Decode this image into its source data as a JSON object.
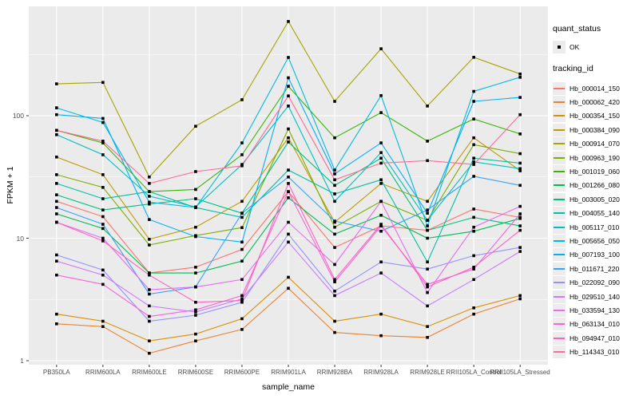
{
  "figure": {
    "background": "#FFFFFF",
    "panel_background": "#EBEBEB",
    "grid_color": "#FFFFFF",
    "tick_color": "#333333",
    "tick_label_color": "#4D4D4D",
    "point_color": "#000000"
  },
  "axes": {
    "x": {
      "title": "sample_name"
    },
    "y": {
      "title": "FPKM + 1",
      "scale": "log10",
      "tick_labels": [
        "1",
        "10",
        "100"
      ],
      "tick_values": [
        1,
        10,
        100
      ]
    }
  },
  "legend": {
    "quant_status": {
      "title": "quant_status",
      "items": [
        {
          "label": "OK",
          "symbol": "point"
        }
      ]
    },
    "tracking_id": {
      "title": "tracking_id"
    }
  },
  "chart_data": {
    "type": "line",
    "title": "",
    "xlabel": "sample_name",
    "ylabel": "FPKM + 1",
    "y_scale": "log10",
    "ylim": [
      0.93,
      780
    ],
    "grid": true,
    "legend_position": "right",
    "categories": [
      "PB350LA",
      "RRIM600LA",
      "RRIM600LE",
      "RRIM600SE",
      "RRIM600PE",
      "RRIM901LA",
      "RRIM928BA",
      "RRIM928LA",
      "RRIM928LE",
      "RRII105LA_Control",
      "RRII105LA_Stressed"
    ],
    "series": [
      {
        "name": "Hb_000014_150",
        "color": "#F8766D",
        "values": [
          20,
          15,
          5.2,
          5.8,
          8.1,
          24,
          8.4,
          12.6,
          11.6,
          17.3,
          14.8
        ]
      },
      {
        "name": "Hb_000062_420",
        "color": "#EA8331",
        "values": [
          2.0,
          1.9,
          1.15,
          1.45,
          1.8,
          3.9,
          1.7,
          1.6,
          1.55,
          2.4,
          3.2
        ]
      },
      {
        "name": "Hb_000354_150",
        "color": "#D89000",
        "values": [
          2.4,
          2.1,
          1.45,
          1.65,
          2.2,
          4.8,
          2.1,
          2.4,
          1.9,
          2.7,
          3.4
        ]
      },
      {
        "name": "Hb_000384_090",
        "color": "#C09B00",
        "values": [
          46,
          33,
          9.8,
          12.3,
          20,
          66,
          13.5,
          28,
          20,
          66,
          35.5
        ]
      },
      {
        "name": "Hb_000914_070",
        "color": "#A3A500",
        "values": [
          182,
          187,
          31.6,
          82,
          135,
          588,
          131,
          352,
          120,
          300,
          219
        ]
      },
      {
        "name": "Hb_000963_190",
        "color": "#7CAE00",
        "values": [
          33,
          26,
          8.8,
          10.5,
          12.2,
          78,
          12.3,
          20,
          14,
          58,
          49
        ]
      },
      {
        "name": "Hb_001019_060",
        "color": "#39B600",
        "values": [
          76,
          60,
          24,
          25,
          48,
          174,
          66,
          106,
          62,
          94,
          71
        ]
      },
      {
        "name": "Hb_001266_080",
        "color": "#00BB4E",
        "values": [
          15.8,
          12,
          5.2,
          5.2,
          6.5,
          21.4,
          10.8,
          15.4,
          10,
          11.4,
          14.5
        ]
      },
      {
        "name": "Hb_003005_020",
        "color": "#00BF7D",
        "values": [
          22.6,
          17,
          19,
          21,
          16,
          61,
          27,
          45,
          11.6,
          14.8,
          12.6
        ]
      },
      {
        "name": "Hb_004055_140",
        "color": "#00C1A3",
        "values": [
          28,
          21,
          24,
          17.8,
          14.8,
          36,
          23,
          30,
          6.4,
          45,
          41
        ]
      },
      {
        "name": "Hb_005117_010",
        "color": "#00BFC4",
        "values": [
          70,
          48,
          22,
          18,
          40,
          120,
          20,
          50,
          14,
          42,
          37
        ]
      },
      {
        "name": "Hb_005656_050",
        "color": "#00BAE0",
        "values": [
          116,
          88,
          19.7,
          17.8,
          60,
          299,
          36,
          146,
          12.6,
          158,
          206
        ]
      },
      {
        "name": "Hb_007193_100",
        "color": "#00B0F6",
        "values": [
          102,
          95,
          14.2,
          10.3,
          9.3,
          204,
          33.5,
          60,
          16,
          131,
          141
        ]
      },
      {
        "name": "Hb_011671_220",
        "color": "#35A2FF",
        "values": [
          17.8,
          13,
          3.5,
          4.0,
          16,
          31.6,
          13.8,
          11.4,
          17,
          32,
          27
        ]
      },
      {
        "name": "Hb_022092_090",
        "color": "#9590FF",
        "values": [
          7.3,
          5.5,
          2.1,
          2.35,
          3.0,
          10.8,
          3.7,
          6.4,
          5.6,
          7.2,
          8.4
        ]
      },
      {
        "name": "Hb_029510_140",
        "color": "#C77CFF",
        "values": [
          6.5,
          5.0,
          2.8,
          2.5,
          3.2,
          9.3,
          3.4,
          5.2,
          2.8,
          4.6,
          7.8
        ]
      },
      {
        "name": "Hb_033594_130",
        "color": "#E76BF3",
        "values": [
          13.5,
          10,
          3.8,
          4.0,
          4.6,
          13.5,
          6.1,
          20,
          3.6,
          12.3,
          18.2
        ]
      },
      {
        "name": "Hb_063134_010",
        "color": "#FA62DB",
        "values": [
          5.0,
          4.2,
          2.3,
          2.6,
          3.4,
          24,
          4.4,
          12.6,
          4.2,
          5.6,
          15.8
        ]
      },
      {
        "name": "Hb_094947_010",
        "color": "#FF62BC",
        "values": [
          13.5,
          9.5,
          5.0,
          3.0,
          3.1,
          28,
          4.6,
          13,
          4.0,
          5.8,
          11.6
        ]
      },
      {
        "name": "Hb_114343_010",
        "color": "#FF6A98",
        "values": [
          76,
          62,
          28,
          35,
          39,
          145,
          30,
          41,
          43,
          40,
          102
        ]
      }
    ]
  }
}
